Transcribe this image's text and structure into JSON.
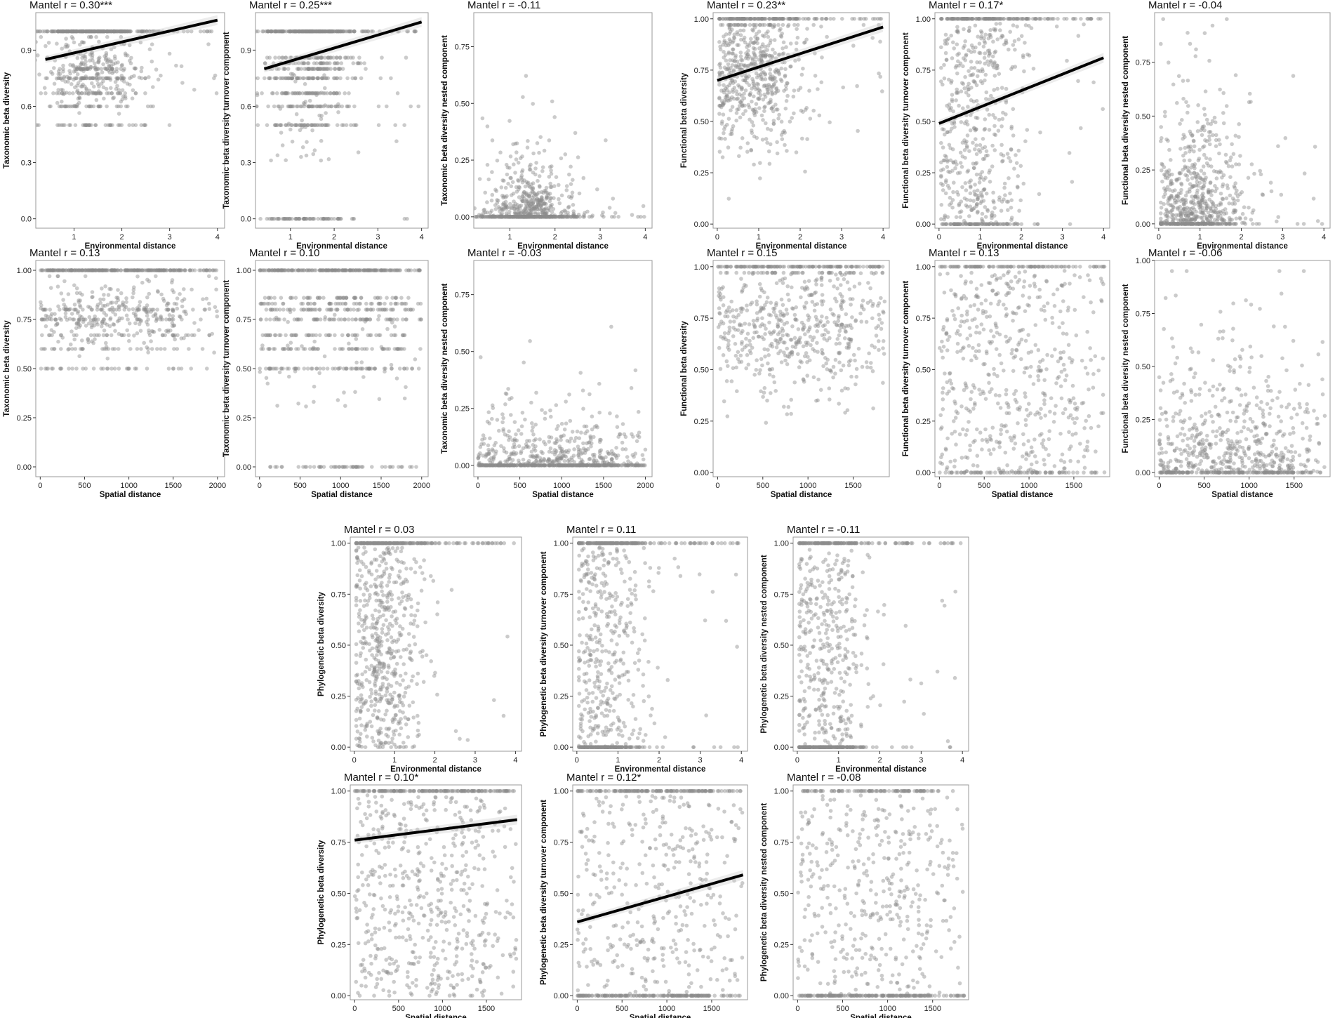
{
  "figure": {
    "kind": "multi-panel Mantel correlation scatter plots"
  },
  "chart_data": [
    {
      "type": "scatter",
      "title": "Mantel r = 0.30***",
      "xlabel": "Environmental distance",
      "ylabel": "Taxonomic beta diversity",
      "xlim": [
        0.2,
        4.15
      ],
      "ylim": [
        -0.05,
        1.1
      ],
      "xticks": [
        1,
        2,
        3,
        4
      ],
      "yticks": [
        0.0,
        0.3,
        0.6,
        0.9
      ],
      "ytick_labels": [
        "0.0",
        "0.3",
        "0.6",
        "0.9"
      ],
      "grid": false,
      "dist": {
        "kind": "cloud",
        "x_mode": 1.4,
        "x_sd": 0.55,
        "x_max": 4.0,
        "top": 1.0,
        "top_frac": 0.35,
        "y_mean": 0.79,
        "y_sd": 0.1,
        "bands": [
          0.5,
          0.6,
          0.67,
          0.75,
          0.8
        ],
        "y_min": 0.0
      },
      "trend": {
        "x": [
          0.4,
          4.0
        ],
        "y": [
          0.85,
          1.06
        ]
      }
    },
    {
      "type": "scatter",
      "title": "Mantel r = 0.25***",
      "xlabel": "Environmental distance",
      "ylabel": "Taxonomic beta diversity turnover component",
      "xlim": [
        0.2,
        4.15
      ],
      "ylim": [
        -0.05,
        1.1
      ],
      "xticks": [
        1,
        2,
        3,
        4
      ],
      "yticks": [
        0.0,
        0.3,
        0.6,
        0.9
      ],
      "ytick_labels": [
        "0.0",
        "0.3",
        "0.6",
        "0.9"
      ],
      "grid": false,
      "dist": {
        "kind": "bands",
        "x_mode": 1.4,
        "x_sd": 0.55,
        "x_max": 4.0,
        "top": 1.0,
        "top_frac": 0.3,
        "bands": [
          0.0,
          0.5,
          0.6,
          0.67,
          0.75,
          0.8,
          0.83,
          0.86
        ],
        "zero_frac": 0.12,
        "y_min": 0.0
      },
      "trend": {
        "x": [
          0.4,
          4.0
        ],
        "y": [
          0.8,
          1.05
        ]
      }
    },
    {
      "type": "scatter",
      "title": "Mantel r = -0.11",
      "xlabel": "Environmental distance",
      "ylabel": "Taxonomic beta diversity nested component",
      "xlim": [
        0.2,
        4.15
      ],
      "ylim": [
        -0.05,
        0.9
      ],
      "xticks": [
        1,
        2,
        3,
        4
      ],
      "yticks": [
        0.0,
        0.25,
        0.5,
        0.75
      ],
      "ytick_labels": [
        "0.00",
        "0.25",
        "0.50",
        "0.75"
      ],
      "grid": false,
      "dist": {
        "kind": "nested",
        "x_mode": 1.4,
        "x_sd": 0.55,
        "x_max": 4.0,
        "zero_frac": 0.45,
        "y_scale": 0.1,
        "y_max": 0.85
      }
    },
    {
      "type": "scatter",
      "title": "Mantel r = 0.23**",
      "xlabel": "Environmental distance",
      "ylabel": "Functional beta diversity",
      "xlim": [
        -0.1,
        4.15
      ],
      "ylim": [
        -0.02,
        1.03
      ],
      "xticks": [
        0,
        1,
        2,
        3,
        4
      ],
      "yticks": [
        0.0,
        0.25,
        0.5,
        0.75,
        1.0
      ],
      "ytick_labels": [
        "0.00",
        "0.25",
        "0.50",
        "0.75",
        "1.00"
      ],
      "grid": false,
      "dist": {
        "kind": "cloud",
        "x_mode": 0.9,
        "x_sd": 0.6,
        "x_max": 4.0,
        "top": 1.0,
        "top_frac": 0.18,
        "y_mean": 0.72,
        "y_sd": 0.17,
        "bands": [],
        "y_min": 0.02
      },
      "trend": {
        "x": [
          0.0,
          4.0
        ],
        "y": [
          0.7,
          0.96
        ]
      }
    },
    {
      "type": "scatter",
      "title": "Mantel r = 0.17*",
      "xlabel": "Environmental distance",
      "ylabel": "Functional beta diversity turnover component",
      "xlim": [
        -0.1,
        4.15
      ],
      "ylim": [
        -0.02,
        1.03
      ],
      "xticks": [
        0,
        1,
        2,
        3,
        4
      ],
      "yticks": [
        0.0,
        0.25,
        0.5,
        0.75,
        1.0
      ],
      "ytick_labels": [
        "0.00",
        "0.25",
        "0.50",
        "0.75",
        "1.00"
      ],
      "grid": false,
      "dist": {
        "kind": "uniform",
        "x_mode": 0.9,
        "x_sd": 0.6,
        "x_max": 4.0,
        "top": 1.0,
        "top_frac": 0.15,
        "zero_frac": 0.12,
        "y_min": 0.0
      },
      "trend": {
        "x": [
          0.0,
          4.0
        ],
        "y": [
          0.49,
          0.81
        ]
      }
    },
    {
      "type": "scatter",
      "title": "Mantel r = -0.04",
      "xlabel": "Environmental distance",
      "ylabel": "Functional beta diversity nested component",
      "xlim": [
        -0.1,
        4.15
      ],
      "ylim": [
        -0.02,
        0.98
      ],
      "xticks": [
        0,
        1,
        2,
        3,
        4
      ],
      "yticks": [
        0.0,
        0.25,
        0.5,
        0.75
      ],
      "ytick_labels": [
        "0.00",
        "0.25",
        "0.50",
        "0.75"
      ],
      "grid": false,
      "dist": {
        "kind": "nested",
        "x_mode": 0.9,
        "x_sd": 0.6,
        "x_max": 4.0,
        "zero_frac": 0.25,
        "y_scale": 0.2,
        "y_max": 0.95
      }
    },
    {
      "type": "scatter",
      "title": "Mantel r = 0.13",
      "xlabel": "Spatial distance",
      "ylabel": "Taxonomic beta diversity",
      "xlim": [
        -50,
        2080
      ],
      "ylim": [
        -0.05,
        1.05
      ],
      "xticks": [
        0,
        500,
        1000,
        1500,
        2000
      ],
      "yticks": [
        0.0,
        0.25,
        0.5,
        0.75,
        1.0
      ],
      "ytick_labels": [
        "0.00",
        "0.25",
        "0.50",
        "0.75",
        "1.00"
      ],
      "grid": false,
      "dist": {
        "kind": "cloud_sp",
        "x_max": 2000,
        "x_core": 1600,
        "top": 1.0,
        "top_frac": 0.35,
        "y_mean": 0.78,
        "y_sd": 0.09,
        "bands": [
          0.5,
          0.6,
          0.67,
          0.75,
          0.8
        ],
        "y_min": 0.0
      }
    },
    {
      "type": "scatter",
      "title": "Mantel r = 0.10",
      "xlabel": "Spatial distance",
      "ylabel": "Taxonomic beta diversity turnover component",
      "xlim": [
        -50,
        2080
      ],
      "ylim": [
        -0.05,
        1.05
      ],
      "xticks": [
        0,
        500,
        1000,
        1500,
        2000
      ],
      "yticks": [
        0.0,
        0.25,
        0.5,
        0.75,
        1.0
      ],
      "ytick_labels": [
        "0.00",
        "0.25",
        "0.50",
        "0.75",
        "1.00"
      ],
      "grid": false,
      "dist": {
        "kind": "bands_sp",
        "x_max": 2000,
        "x_core": 1650,
        "top": 1.0,
        "top_frac": 0.3,
        "bands": [
          0.0,
          0.5,
          0.6,
          0.67,
          0.75,
          0.8,
          0.83,
          0.86
        ],
        "zero_frac": 0.08,
        "y_min": 0.0
      }
    },
    {
      "type": "scatter",
      "title": "Mantel r = -0.03",
      "xlabel": "Spatial distance",
      "ylabel": "Taxonomic beta diversity nested component",
      "xlim": [
        -50,
        2080
      ],
      "ylim": [
        -0.05,
        0.9
      ],
      "xticks": [
        0,
        500,
        1000,
        1500,
        2000
      ],
      "yticks": [
        0.0,
        0.25,
        0.5,
        0.75
      ],
      "ytick_labels": [
        "0.00",
        "0.25",
        "0.50",
        "0.75"
      ],
      "grid": false,
      "dist": {
        "kind": "nested_sp",
        "x_max": 2000,
        "x_core": 1650,
        "zero_frac": 0.45,
        "y_scale": 0.09,
        "y_max": 0.85
      }
    },
    {
      "type": "scatter",
      "title": "Mantel r = 0.15",
      "xlabel": "Spatial distance",
      "ylabel": "Functional beta diversity",
      "xlim": [
        -50,
        1900
      ],
      "ylim": [
        -0.02,
        1.03
      ],
      "xticks": [
        0,
        500,
        1000,
        1500
      ],
      "yticks": [
        0.0,
        0.25,
        0.5,
        0.75,
        1.0
      ],
      "ytick_labels": [
        "0.00",
        "0.25",
        "0.50",
        "0.75",
        "1.00"
      ],
      "grid": false,
      "dist": {
        "kind": "cloud_sp",
        "x_max": 1850,
        "x_core": 1500,
        "top": 1.0,
        "top_frac": 0.18,
        "y_mean": 0.72,
        "y_sd": 0.17,
        "bands": [],
        "y_min": 0.02
      }
    },
    {
      "type": "scatter",
      "title": "Mantel r = 0.13",
      "xlabel": "Spatial distance",
      "ylabel": "Functional beta diversity turnover component",
      "xlim": [
        -50,
        1900
      ],
      "ylim": [
        -0.02,
        1.03
      ],
      "xticks": [
        0,
        500,
        1000,
        1500
      ],
      "yticks": [
        0.0,
        0.25,
        0.5,
        0.75,
        1.0
      ],
      "ytick_labels": [
        "0.00",
        "0.25",
        "0.50",
        "0.75",
        "1.00"
      ],
      "grid": false,
      "dist": {
        "kind": "uniform_sp",
        "x_max": 1850,
        "x_core": 1500,
        "top": 1.0,
        "top_frac": 0.15,
        "zero_frac": 0.12,
        "y_min": 0.0
      }
    },
    {
      "type": "scatter",
      "title": "Mantel r = -0.06",
      "xlabel": "Spatial distance",
      "ylabel": "Functional beta diversity nested component",
      "xlim": [
        -50,
        1900
      ],
      "ylim": [
        -0.02,
        1.0
      ],
      "xticks": [
        0,
        500,
        1000,
        1500
      ],
      "yticks": [
        0.0,
        0.25,
        0.5,
        0.75,
        1.0
      ],
      "ytick_labels": [
        "0.00",
        "0.25",
        "0.50",
        "0.75",
        "1.00"
      ],
      "grid": false,
      "dist": {
        "kind": "nested_sp",
        "x_max": 1850,
        "x_core": 1500,
        "zero_frac": 0.25,
        "y_scale": 0.2,
        "y_max": 0.95
      }
    },
    {
      "type": "scatter",
      "title": "Mantel r = 0.03",
      "xlabel": "Environmental distance",
      "ylabel": "Phylogenetic beta diversity",
      "xlim": [
        -0.1,
        4.15
      ],
      "ylim": [
        -0.02,
        1.03
      ],
      "xticks": [
        0,
        1,
        2,
        3,
        4
      ],
      "yticks": [
        0.0,
        0.25,
        0.5,
        0.75,
        1.0
      ],
      "ytick_labels": [
        "0.00",
        "0.25",
        "0.50",
        "0.75",
        "1.00"
      ],
      "grid": false,
      "dist": {
        "kind": "uniform",
        "x_mode": 0.7,
        "x_sd": 0.5,
        "x_max": 4.0,
        "top": 1.0,
        "top_frac": 0.22,
        "zero_frac": 0.02,
        "y_min": 0.0
      }
    },
    {
      "type": "scatter",
      "title": "Mantel r = 0.11",
      "xlabel": "Environmental distance",
      "ylabel": "Phylogenetic beta diversity turnover component",
      "xlim": [
        -0.1,
        4.15
      ],
      "ylim": [
        -0.02,
        1.03
      ],
      "xticks": [
        0,
        1,
        2,
        3,
        4
      ],
      "yticks": [
        0.0,
        0.25,
        0.5,
        0.75,
        1.0
      ],
      "ytick_labels": [
        "0.00",
        "0.25",
        "0.50",
        "0.75",
        "1.00"
      ],
      "grid": false,
      "dist": {
        "kind": "uniform",
        "x_mode": 0.7,
        "x_sd": 0.5,
        "x_max": 4.0,
        "top": 1.0,
        "top_frac": 0.2,
        "zero_frac": 0.25,
        "y_min": 0.0
      }
    },
    {
      "type": "scatter",
      "title": "Mantel r = -0.11",
      "xlabel": "Environmental distance",
      "ylabel": "Phylogenetic beta diversity nested component",
      "xlim": [
        -0.1,
        4.15
      ],
      "ylim": [
        -0.02,
        1.03
      ],
      "xticks": [
        0,
        1,
        2,
        3,
        4
      ],
      "yticks": [
        0.0,
        0.25,
        0.5,
        0.75,
        1.0
      ],
      "ytick_labels": [
        "0.00",
        "0.25",
        "0.50",
        "0.75",
        "1.00"
      ],
      "grid": false,
      "dist": {
        "kind": "uniform",
        "x_mode": 0.7,
        "x_sd": 0.5,
        "x_max": 4.0,
        "top": 1.0,
        "top_frac": 0.15,
        "zero_frac": 0.3,
        "y_min": 0.0
      }
    },
    {
      "type": "scatter",
      "title": "Mantel r = 0.10*",
      "xlabel": "Spatial distance",
      "ylabel": "Phylogenetic beta diversity",
      "xlim": [
        -50,
        1900
      ],
      "ylim": [
        -0.02,
        1.03
      ],
      "xticks": [
        0,
        500,
        1000,
        1500
      ],
      "yticks": [
        0.0,
        0.25,
        0.5,
        0.75,
        1.0
      ],
      "ytick_labels": [
        "0.00",
        "0.25",
        "0.50",
        "0.75",
        "1.00"
      ],
      "grid": false,
      "dist": {
        "kind": "uniform_sp",
        "x_max": 1850,
        "x_core": 1500,
        "top": 1.0,
        "top_frac": 0.22,
        "zero_frac": 0.02,
        "y_min": 0.0
      },
      "trend": {
        "x": [
          0,
          1850
        ],
        "y": [
          0.76,
          0.86
        ]
      }
    },
    {
      "type": "scatter",
      "title": "Mantel r = 0.12*",
      "xlabel": "Spatial distance",
      "ylabel": "Phylogenetic beta diversity turnover component",
      "xlim": [
        -50,
        1900
      ],
      "ylim": [
        -0.02,
        1.03
      ],
      "xticks": [
        0,
        500,
        1000,
        1500
      ],
      "yticks": [
        0.0,
        0.25,
        0.5,
        0.75,
        1.0
      ],
      "ytick_labels": [
        "0.00",
        "0.25",
        "0.50",
        "0.75",
        "1.00"
      ],
      "grid": false,
      "dist": {
        "kind": "uniform_sp",
        "x_max": 1850,
        "x_core": 1500,
        "top": 1.0,
        "top_frac": 0.2,
        "zero_frac": 0.25,
        "y_min": 0.0
      },
      "trend": {
        "x": [
          0,
          1850
        ],
        "y": [
          0.36,
          0.59
        ]
      }
    },
    {
      "type": "scatter",
      "title": "Mantel r = -0.08",
      "xlabel": "Spatial distance",
      "ylabel": "Phylogenetic beta diversity nested component",
      "xlim": [
        -50,
        1900
      ],
      "ylim": [
        -0.02,
        1.03
      ],
      "xticks": [
        0,
        500,
        1000,
        1500
      ],
      "yticks": [
        0.0,
        0.25,
        0.5,
        0.75,
        1.0
      ],
      "ytick_labels": [
        "0.00",
        "0.25",
        "0.50",
        "0.75",
        "1.00"
      ],
      "grid": false,
      "dist": {
        "kind": "uniform_sp",
        "x_max": 1850,
        "x_core": 1500,
        "top": 1.0,
        "top_frac": 0.15,
        "zero_frac": 0.3,
        "y_min": 0.0
      }
    }
  ]
}
